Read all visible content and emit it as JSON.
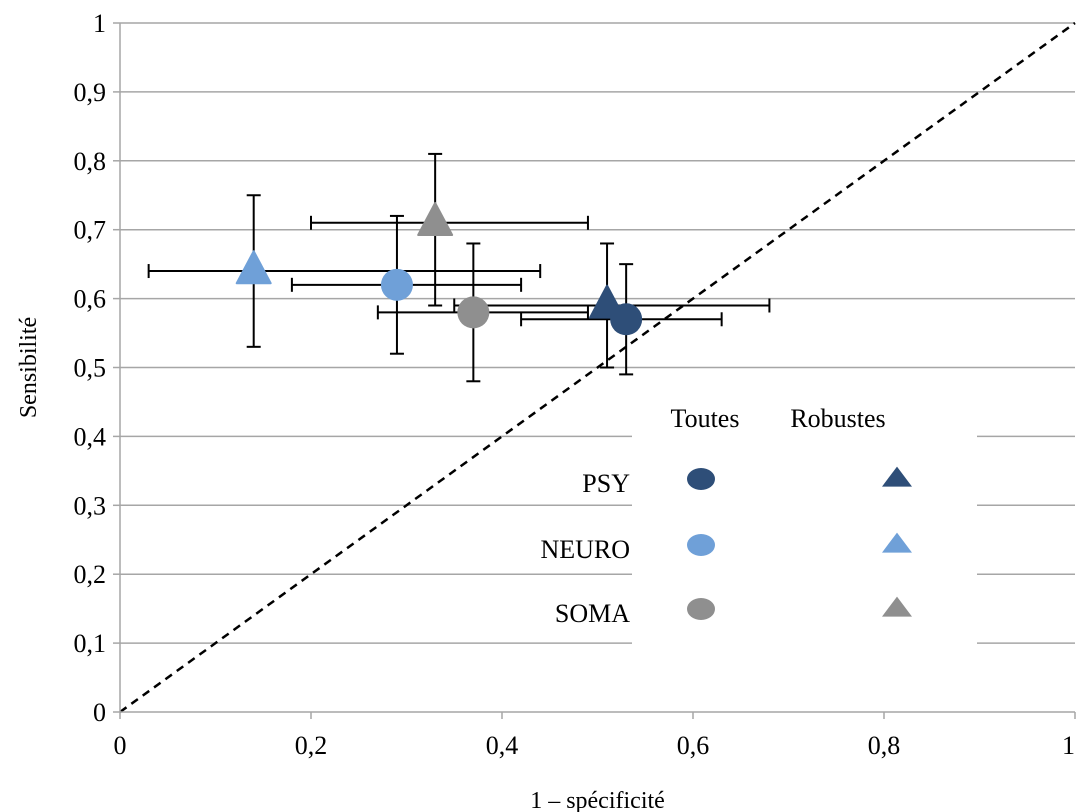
{
  "chart_data": {
    "type": "scatter",
    "xlabel": "1 – spécificité",
    "ylabel": "Sensibilité",
    "xlim": [
      0,
      1
    ],
    "ylim": [
      0,
      1
    ],
    "x_ticks": [
      "0",
      "0,2",
      "0,4",
      "0,6",
      "0,8",
      "1"
    ],
    "y_ticks": [
      "0",
      "0,1",
      "0,2",
      "0,3",
      "0,4",
      "0,5",
      "0,6",
      "0,7",
      "0,8",
      "0,9",
      "1"
    ],
    "grid": "horizontal",
    "reference_line": {
      "style": "dashed",
      "from": [
        0,
        0
      ],
      "to": [
        1,
        1
      ]
    },
    "legend": {
      "position": "bottom-right",
      "column_headers": [
        "Toutes",
        "Robustes"
      ],
      "rows": [
        "PSY",
        "NEURO",
        "SOMA"
      ]
    },
    "colors": {
      "PSY": "#2e4e78",
      "NEURO": "#6fa0d8",
      "SOMA": "#8f8f8f"
    },
    "series": [
      {
        "group": "PSY",
        "marker": "circle",
        "x": 0.53,
        "y": 0.57,
        "x_err": [
          0.42,
          0.63
        ],
        "y_err": [
          0.49,
          0.65
        ]
      },
      {
        "group": "PSY",
        "marker": "triangle",
        "x": 0.51,
        "y": 0.59,
        "x_err": [
          0.35,
          0.68
        ],
        "y_err": [
          0.5,
          0.68
        ]
      },
      {
        "group": "NEURO",
        "marker": "circle",
        "x": 0.29,
        "y": 0.62,
        "x_err": [
          0.18,
          0.42
        ],
        "y_err": [
          0.52,
          0.72
        ]
      },
      {
        "group": "NEURO",
        "marker": "triangle",
        "x": 0.14,
        "y": 0.64,
        "x_err": [
          0.03,
          0.44
        ],
        "y_err": [
          0.53,
          0.75
        ]
      },
      {
        "group": "SOMA",
        "marker": "circle",
        "x": 0.37,
        "y": 0.58,
        "x_err": [
          0.27,
          0.49
        ],
        "y_err": [
          0.48,
          0.68
        ]
      },
      {
        "group": "SOMA",
        "marker": "triangle",
        "x": 0.33,
        "y": 0.71,
        "x_err": [
          0.2,
          0.49
        ],
        "y_err": [
          0.59,
          0.81
        ]
      }
    ]
  }
}
